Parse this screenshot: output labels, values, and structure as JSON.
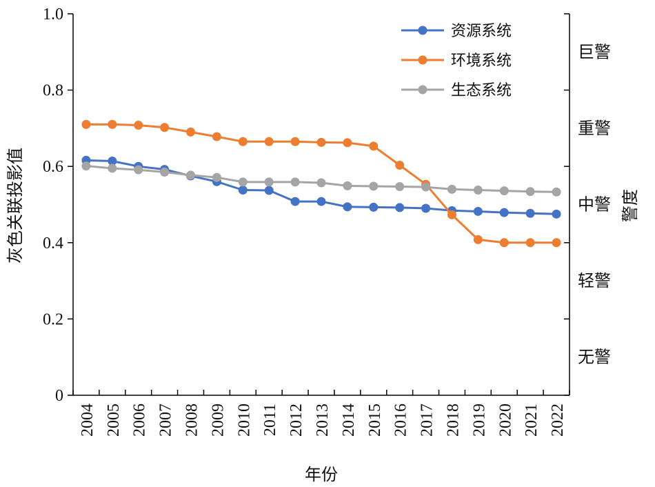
{
  "chart_data": {
    "type": "line",
    "title": "",
    "xlabel": "年份",
    "ylabel": "灰色关联投影值",
    "y2label": "警度",
    "ylim": [
      0,
      1.0
    ],
    "yticks": [
      "0",
      "0.2",
      "0.4",
      "0.6",
      "0.8",
      "1.0"
    ],
    "ytick_values": [
      0,
      0.2,
      0.4,
      0.6,
      0.8,
      1.0
    ],
    "grid": false,
    "legend_position": "top-right",
    "categories": [
      "2004",
      "2005",
      "2006",
      "2007",
      "2008",
      "2009",
      "2010",
      "2011",
      "2012",
      "2013",
      "2014",
      "2015",
      "2016",
      "2017",
      "2018",
      "2019",
      "2020",
      "2021",
      "2022"
    ],
    "series": [
      {
        "name": "资源系统",
        "color": "#4472c4",
        "values": [
          0.616,
          0.614,
          0.6,
          0.592,
          0.575,
          0.56,
          0.538,
          0.537,
          0.508,
          0.508,
          0.494,
          0.493,
          0.492,
          0.49,
          0.484,
          0.482,
          0.479,
          0.477,
          0.475
        ]
      },
      {
        "name": "环境系统",
        "color": "#ed7d31",
        "values": [
          0.71,
          0.71,
          0.708,
          0.702,
          0.69,
          0.678,
          0.665,
          0.665,
          0.665,
          0.663,
          0.662,
          0.653,
          0.603,
          0.553,
          0.473,
          0.408,
          0.4,
          0.4,
          0.4
        ]
      },
      {
        "name": "生态系统",
        "color": "#a5a5a5",
        "values": [
          0.601,
          0.595,
          0.591,
          0.585,
          0.577,
          0.571,
          0.559,
          0.559,
          0.559,
          0.557,
          0.549,
          0.548,
          0.547,
          0.546,
          0.54,
          0.538,
          0.536,
          0.534,
          0.533
        ]
      }
    ],
    "warning_levels": [
      {
        "label": "巨警",
        "low": 0.8,
        "high": 1.0
      },
      {
        "label": "重警",
        "low": 0.6,
        "high": 0.8
      },
      {
        "label": "中警",
        "low": 0.4,
        "high": 0.6
      },
      {
        "label": "轻警",
        "low": 0.2,
        "high": 0.4
      },
      {
        "label": "无警",
        "low": 0.0,
        "high": 0.2
      }
    ]
  }
}
